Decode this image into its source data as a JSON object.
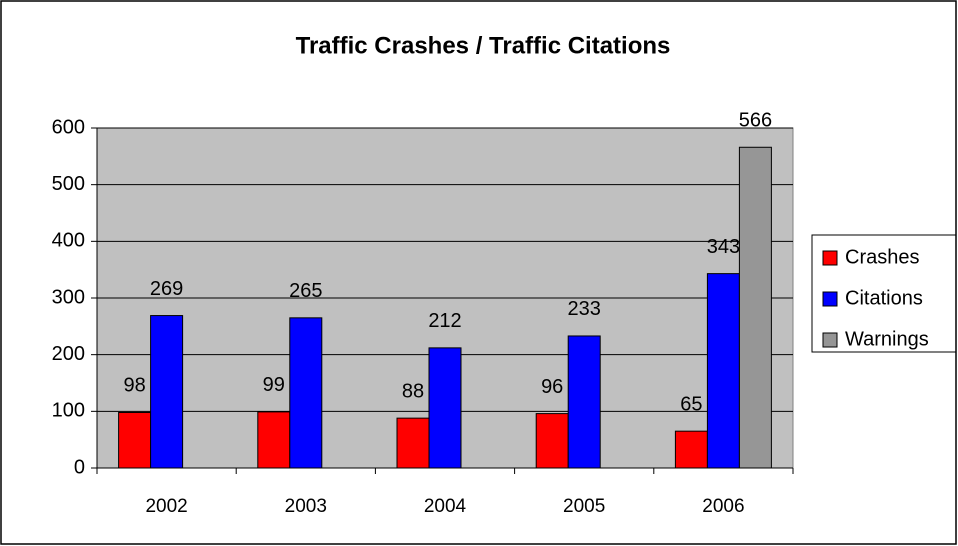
{
  "chart_data": {
    "type": "bar",
    "title": "Traffic Crashes / Traffic Citations",
    "categories": [
      "2002",
      "2003",
      "2004",
      "2005",
      "2006"
    ],
    "series": [
      {
        "name": "Crashes",
        "color": "#ff0000",
        "values": [
          98,
          99,
          88,
          96,
          65
        ]
      },
      {
        "name": "Citations",
        "color": "#0000ff",
        "values": [
          269,
          265,
          212,
          233,
          343
        ]
      },
      {
        "name": "Warnings",
        "color": "#969696",
        "values": [
          null,
          null,
          null,
          null,
          566
        ]
      }
    ],
    "ylim": [
      0,
      600
    ],
    "yticks": [
      0,
      100,
      200,
      300,
      400,
      500,
      600
    ],
    "grid": true,
    "legend": "right"
  }
}
